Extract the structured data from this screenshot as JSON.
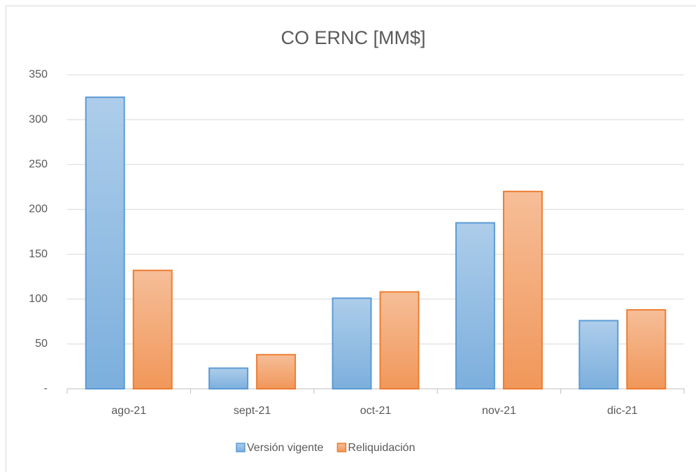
{
  "chart_data": {
    "type": "bar",
    "title": "CO ERNC [MM$]",
    "categories": [
      "ago-21",
      "sept-21",
      "oct-21",
      "nov-21",
      "dic-21"
    ],
    "series": [
      {
        "name": "Versión vigente",
        "color": "#5b9bd5",
        "values": [
          325,
          23,
          101,
          185,
          76
        ]
      },
      {
        "name": "Reliquidación",
        "color": "#ed7d31",
        "values": [
          132,
          38,
          108,
          220,
          88
        ]
      }
    ],
    "ylim": [
      0,
      350
    ],
    "yticks": [
      {
        "value": 0,
        "label": "-"
      },
      50,
      100,
      150,
      200,
      250,
      300,
      350
    ],
    "grid": true,
    "legend": "bottom"
  }
}
